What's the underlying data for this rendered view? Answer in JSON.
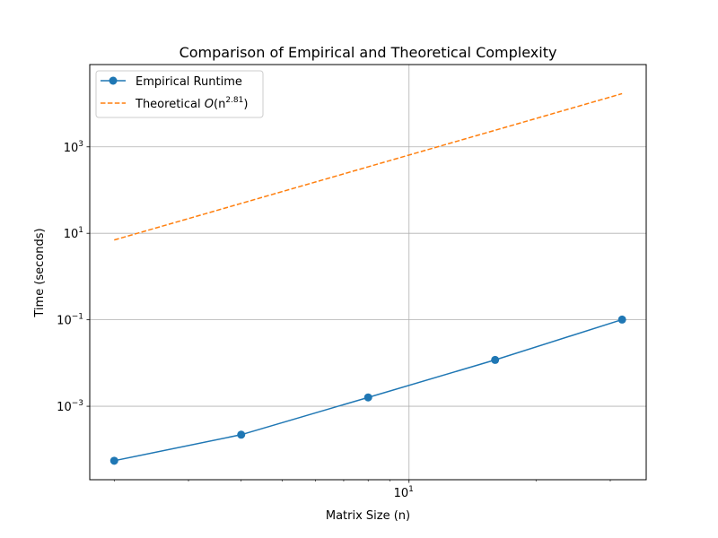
{
  "chart_data": {
    "type": "line",
    "title": "Comparison of Empirical and Theoretical Complexity",
    "xlabel": "Matrix Size (n)",
    "ylabel": "Time (seconds)",
    "xscale": "log",
    "yscale": "log",
    "xlim": [
      1.75,
      36.5
    ],
    "ylim": [
      2e-05,
      80000
    ],
    "grid": true,
    "legend_position": "top-left",
    "x_ticks": [
      {
        "value": 10,
        "label": "10",
        "exp": "1"
      }
    ],
    "y_ticks": [
      {
        "value": 0.001,
        "label": "10",
        "exp": "−3"
      },
      {
        "value": 0.1,
        "label": "10",
        "exp": "−1"
      },
      {
        "value": 10,
        "label": "10",
        "exp": "1"
      },
      {
        "value": 1000,
        "label": "10",
        "exp": "3"
      }
    ],
    "series": [
      {
        "name": "Empirical Runtime",
        "color": "#1f77b4",
        "style": "solid",
        "marker": "circle",
        "x": [
          2,
          4,
          8,
          16,
          32
        ],
        "y": [
          5.5e-05,
          0.00022,
          0.0016,
          0.0118,
          0.101
        ]
      },
      {
        "name": "Theoretical O(n^2.81)",
        "legend_prefix": "Theoretical ",
        "legend_math": "O",
        "legend_base": "(n",
        "legend_exp": "2.81",
        "legend_suffix": ")",
        "color": "#ff7f0e",
        "style": "dashed",
        "marker": "none",
        "x": [
          2,
          4,
          8,
          16,
          32
        ],
        "y": [
          7.01,
          49.2,
          345,
          2420,
          16990
        ]
      }
    ]
  }
}
